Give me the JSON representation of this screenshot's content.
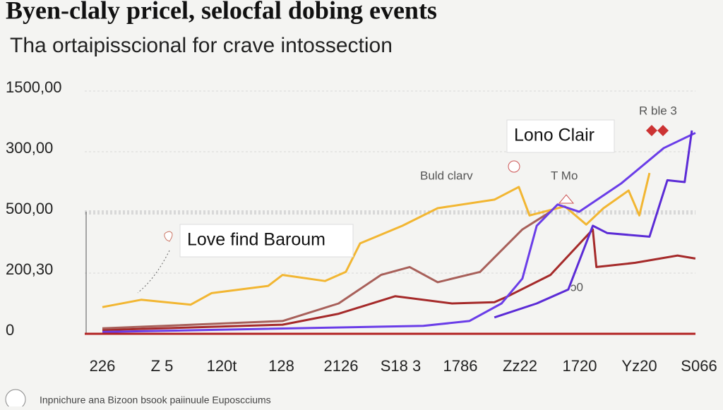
{
  "chart_data": {
    "type": "line",
    "title": "Byen-claly pricel, selocfal dobing events",
    "subtitle": "Tha ortaipisscional for crave intossection",
    "annotations": [
      "Love find Baroum",
      "Lono Clair",
      "Buld clarv",
      "T Mo",
      "R ble 3",
      "ↄ0"
    ],
    "footer": "Inpnichure ana Bizoon bsook paiinuule Euposcciums",
    "xlim": [
      0,
      10
    ],
    "xticks": [
      {
        "value": 0,
        "label": "226"
      },
      {
        "value": 1,
        "label": "Z 5"
      },
      {
        "value": 2,
        "label": "120t"
      },
      {
        "value": 3,
        "label": "128"
      },
      {
        "value": 4,
        "label": "2126"
      },
      {
        "value": 5,
        "label": "S18 3"
      },
      {
        "value": 6,
        "label": "1786"
      },
      {
        "value": 7,
        "label": "Zz22"
      },
      {
        "value": 8,
        "label": "1720"
      },
      {
        "value": 9,
        "label": "Yz20"
      },
      {
        "value": 10,
        "label": "S066"
      }
    ],
    "ylim": [
      0,
      4
    ],
    "yticks": [
      {
        "value": 0,
        "label": "0"
      },
      {
        "value": 1,
        "label": "200,30"
      },
      {
        "value": 2,
        "label": "500,00"
      },
      {
        "value": 3,
        "label": "300,00"
      },
      {
        "value": 4,
        "label": "1500,00"
      }
    ],
    "grid": true,
    "series": [
      {
        "color": "#f2b632",
        "x": [
          0,
          0.65,
          1.48,
          1.83,
          2.78,
          3.02,
          3.73,
          4.08,
          4.32,
          5.03,
          5.62,
          6.57,
          6.98,
          7.16,
          7.75,
          8.11,
          8.4,
          8.82,
          9.0,
          9.17
        ],
        "values": [
          0.44,
          0.56,
          0.48,
          0.67,
          0.79,
          0.97,
          0.87,
          1.02,
          1.49,
          1.78,
          2.07,
          2.21,
          2.42,
          1.95,
          2.1,
          1.8,
          2.07,
          2.36,
          1.95,
          2.65
        ]
      },
      {
        "color": "#a52a2a",
        "x": [
          0,
          3.02,
          3.96,
          4.91,
          5.86,
          6.57,
          6.8,
          7.51,
          8.22,
          8.28,
          8.93,
          9.64,
          9.94
        ],
        "values": [
          0.06,
          0.15,
          0.33,
          0.62,
          0.5,
          0.52,
          0.62,
          0.97,
          1.72,
          1.1,
          1.17,
          1.29,
          1.24
        ]
      },
      {
        "color": "#a8605a",
        "x": [
          0,
          3.02,
          3.96,
          4.67,
          5.15,
          5.62,
          6.33,
          7.04,
          7.51
        ],
        "values": [
          0.09,
          0.21,
          0.5,
          0.97,
          1.1,
          0.85,
          1.02,
          1.72,
          2.01
        ]
      },
      {
        "color": "#6a3de8",
        "x": [
          0,
          5.38,
          6.15,
          6.69,
          7.04,
          7.28,
          7.63,
          7.99,
          8.7,
          9.41,
          9.94
        ],
        "values": [
          0.03,
          0.13,
          0.21,
          0.5,
          0.91,
          1.78,
          2.13,
          2.01,
          2.48,
          3.06,
          3.31
        ]
      },
      {
        "color": "#5b2bd6",
        "x": [
          6.57,
          7.28,
          7.81,
          8.22,
          8.46,
          9.17,
          9.47,
          9.76,
          9.88
        ],
        "values": [
          0.27,
          0.5,
          0.73,
          1.78,
          1.66,
          1.6,
          2.53,
          2.5,
          3.35
        ]
      }
    ]
  }
}
